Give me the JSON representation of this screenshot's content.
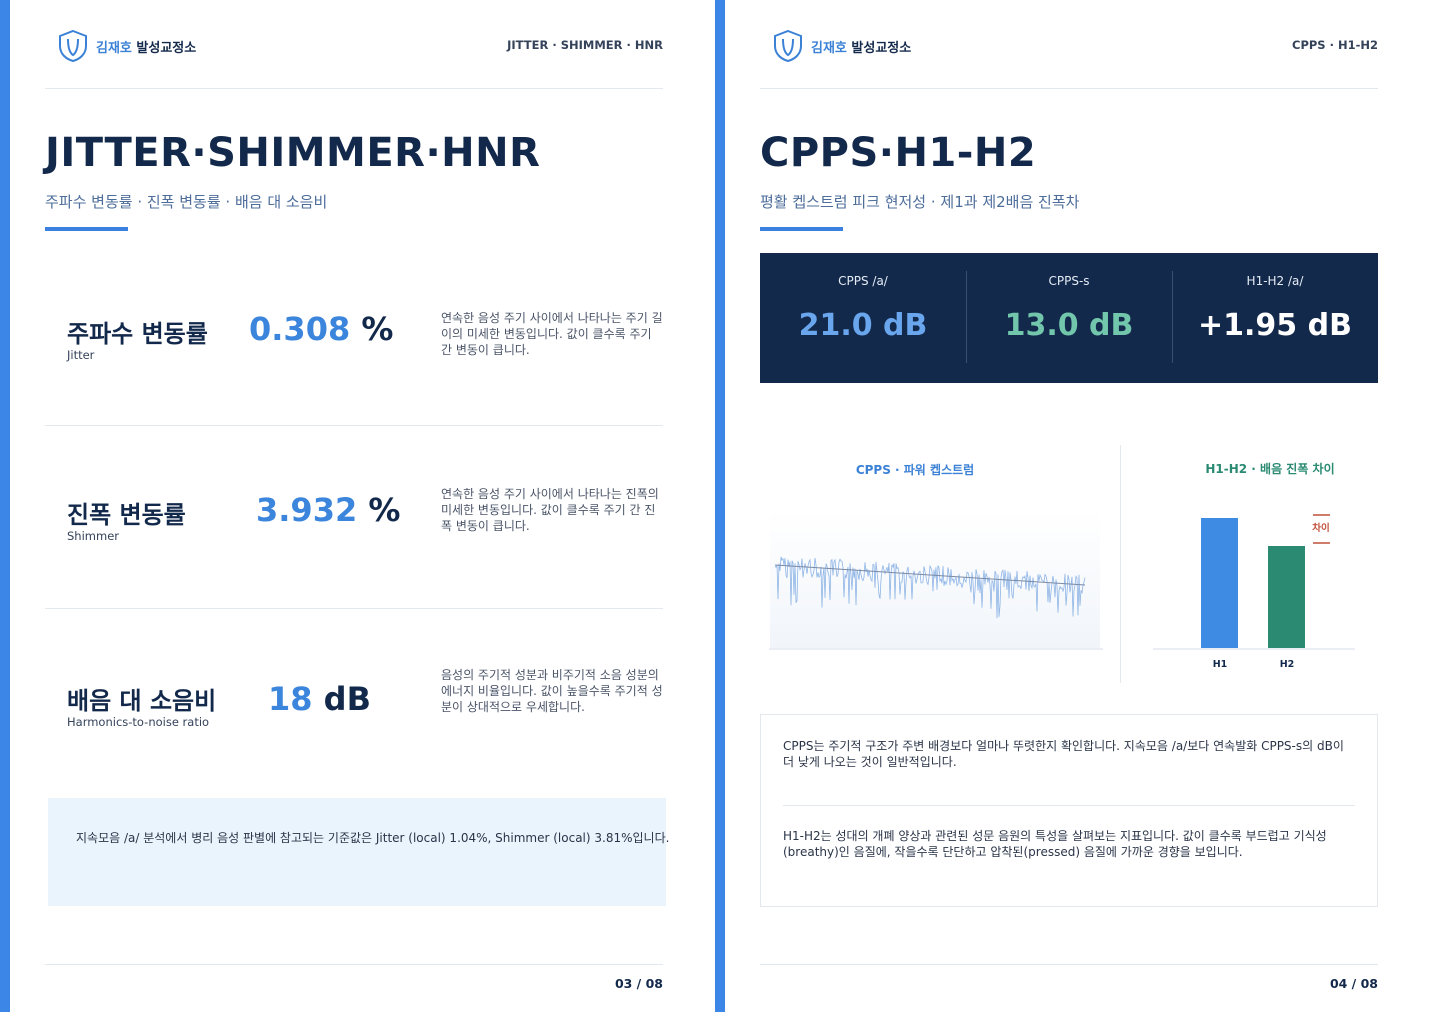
{
  "pages": [
    {
      "brand": {
        "name": "김재호",
        "suffix": "발성교정소"
      },
      "tag": "JITTER · SHIMMER · HNR",
      "title": "JITTER·SHIMMER·HNR",
      "subtitle": "주파수 변동률 · 진폭 변동률 · 배음 대 소음비",
      "metrics": [
        {
          "name": "주파수 변동률",
          "english": "Jitter",
          "value": "0.308",
          "unit": "%",
          "description": "연속한 음성 주기 사이에서 나타나는 주기 길이의 미세한 변동입니다. 값이 클수록 주기 간 변동이 큽니다."
        },
        {
          "name": "진폭 변동률",
          "english": "Shimmer",
          "value": "3.932",
          "unit": "%",
          "description": "연속한 음성 주기 사이에서 나타나는 진폭의 미세한 변동입니다. 값이 클수록 주기 간 진폭 변동이 큽니다."
        },
        {
          "name": "배음 대 소음비",
          "english": "Harmonics-to-noise ratio",
          "value": "18",
          "unit": "dB",
          "description": "음성의 주기적 성분과 비주기적 소음 성분의 에너지 비율입니다. 값이 높을수록 주기적 성분이 상대적으로 우세합니다."
        }
      ],
      "note": "지속모음 /a/ 분석에서 병리 음성 판별에 참고되는 기준값은 Jitter (local) 1.04%, Shimmer (local) 3.81%입니다.",
      "page_number": "03 / 08"
    },
    {
      "brand": {
        "name": "김재호",
        "suffix": "발성교정소"
      },
      "tag": "CPPS · H1-H2",
      "title": "CPPS·H1-H2",
      "subtitle": "평활 켑스트럼 피크 현저성 · 제1과 제2배음 진폭차",
      "stats": [
        {
          "label": "CPPS /a/",
          "value": "21.0 dB"
        },
        {
          "label": "CPPS-s",
          "value": "13.0 dB"
        },
        {
          "label": "H1-H2 /a/",
          "value": "+1.95 dB"
        }
      ],
      "cepstrum_title": "CPPS · 파워 켑스트럼",
      "h1h2_chart": {
        "title": "H1-H2 · 배음 진폭 차이",
        "categories": [
          "H1",
          "H2"
        ],
        "annotation": "차이"
      },
      "explanations": [
        "CPPS는 주기적 구조가 주변 배경보다 얼마나 뚜렷한지 확인합니다. 지속모음 /a/보다 연속발화 CPPS-s의 dB이 더 낮게 나오는 것이 일반적입니다.",
        "H1-H2는 성대의 개폐 양상과 관련된 성문 음원의 특성을 살펴보는 지표입니다. 값이 클수록 부드럽고 기식성(breathy)인 음질에, 작을수록 단단하고 압착된(pressed) 음질에 가까운 경향을 보입니다."
      ],
      "page_number": "04 / 08"
    }
  ]
}
